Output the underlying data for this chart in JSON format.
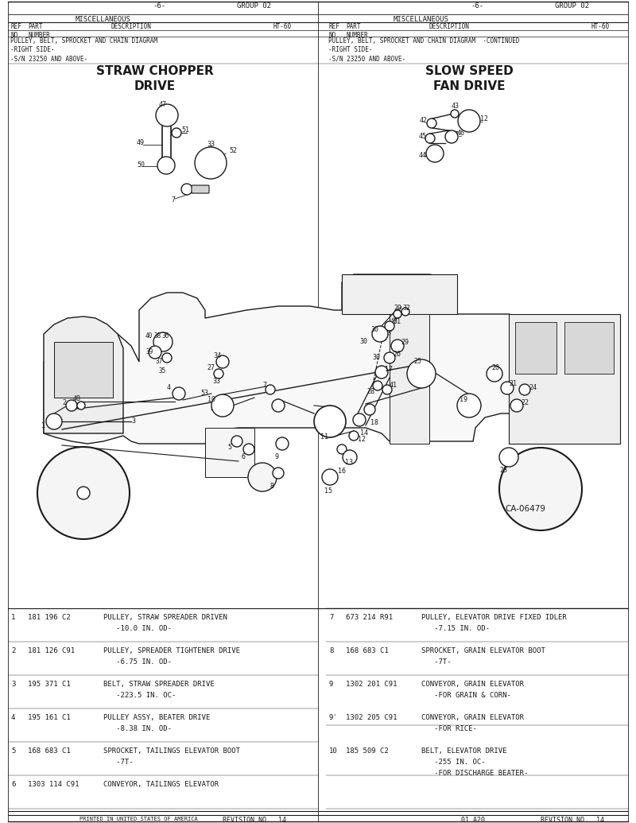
{
  "bg_color": "#ffffff",
  "line_color": "#1a1a1a",
  "text_color": "#1a1a1a",
  "header": {
    "misc": "MISCELLANEOUS",
    "page": "-6-",
    "group": "GROUP 02",
    "ref_no": "REF\nNO.",
    "part_num": "PART\nNUMBER",
    "desc": "DESCRIPTION",
    "model": "HT-60"
  },
  "note_left": "PULLEY, BELT, SPROCKET AND CHAIN DIAGRAM\n-RIGHT SIDE-\n-S/N 23250 AND ABOVE-",
  "note_right": "PULLEY, BELT, SPROCKET AND CHAIN DIAGRAM  -CONTINUED\n-RIGHT SIDE-\n-S/N 23250 AND ABOVE-",
  "title_left": "STRAW CHOPPER\nDRIVE",
  "title_right": "SLOW SPEED\nFAN DRIVE",
  "diagram_id": "CA-06479",
  "parts_left": [
    {
      "n": "1",
      "p": "181 196 C2",
      "d": "PULLEY, STRAW SPREADER DRIVEN\n   -10.0 IN. OD-"
    },
    {
      "n": "2",
      "p": "181 126 C91",
      "d": "PULLEY, SPREADER TIGHTENER DRIVE\n   -6.75 IN. OD-"
    },
    {
      "n": "3",
      "p": "195 371 C1",
      "d": "BELT, STRAW SPREADER DRIVE\n   -223.5 IN. OC-"
    },
    {
      "n": "4",
      "p": "195 161 C1",
      "d": "PULLEY ASSY, BEATER DRIVE\n   -8.38 IN. OD-"
    },
    {
      "n": "5",
      "p": "168 683 C1",
      "d": "SPROCKET, TAILINGS ELEVATOR BOOT\n   -7T-"
    },
    {
      "n": "6",
      "p": "1303 114 C91",
      "d": "CONVEYOR, TAILINGS ELEVATOR"
    }
  ],
  "parts_right": [
    {
      "n": "7",
      "p": "673 214 R91",
      "d": "PULLEY, ELEVATOR DRIVE FIXED IDLER\n   -7.15 IN. OD-"
    },
    {
      "n": "8",
      "p": "168 683 C1",
      "d": "SPROCKET, GRAIN ELEVATOR BOOT\n   -7T-"
    },
    {
      "n": "9",
      "p": "1302 201 C91",
      "d": "CONVEYOR, GRAIN ELEVATOR\n   -FOR GRAIN & CORN-"
    },
    {
      "n": "9'",
      "p": "1302 205 C91",
      "d": "CONVEYOR, GRAIN ELEVATOR\n   -FOR RICE-"
    },
    {
      "n": "10",
      "p": "185 509 C2",
      "d": "BELT, ELEVATOR DRIVE\n   -255 IN. OC-\n   -FOR DISCHARGE BEATER-"
    }
  ],
  "footer_left": "PRINTED IN UNITED STATES OF AMERICA",
  "revision": "REVISION NO.  14",
  "page_code": "01 A20"
}
